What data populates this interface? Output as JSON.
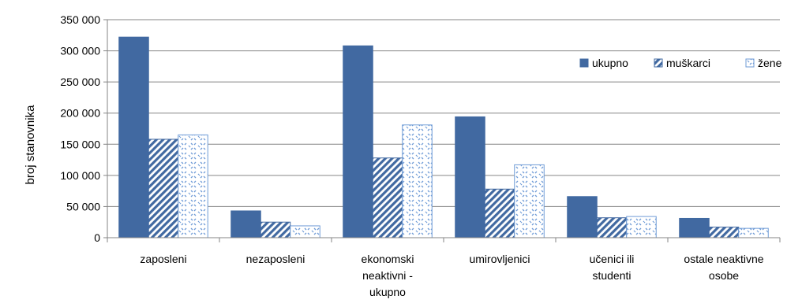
{
  "chart_data": {
    "type": "bar",
    "title": "",
    "xlabel": "",
    "ylabel": "broj stanovnika",
    "ylim": [
      0,
      350000
    ],
    "yticks": [
      0,
      50000,
      100000,
      150000,
      200000,
      250000,
      300000,
      350000
    ],
    "ytick_labels": [
      "0",
      "50 000",
      "100 000",
      "150 000",
      "200 000",
      "250 000",
      "300 000",
      "350 000"
    ],
    "grid": true,
    "legend_position": "right",
    "categories": [
      [
        "zaposleni"
      ],
      [
        "nezaposleni"
      ],
      [
        "ekonomski",
        "neaktivni -",
        "ukupno"
      ],
      [
        "umirovljenici"
      ],
      [
        "učenici ili",
        "studenti"
      ],
      [
        "ostale neaktivne",
        "osobe"
      ]
    ],
    "series": [
      {
        "name": "ukupno",
        "pattern": "solid",
        "color": "#4169a1",
        "values": [
          322000,
          43000,
          308000,
          194000,
          66000,
          31000
        ]
      },
      {
        "name": "muškarci",
        "pattern": "diagonal",
        "color": "#4169a1",
        "values": [
          158000,
          25000,
          128000,
          78000,
          32000,
          17000
        ]
      },
      {
        "name": "žene",
        "pattern": "dots",
        "color": "#6f9bd6",
        "values": [
          165000,
          19000,
          181000,
          117000,
          34000,
          15000
        ]
      }
    ]
  }
}
